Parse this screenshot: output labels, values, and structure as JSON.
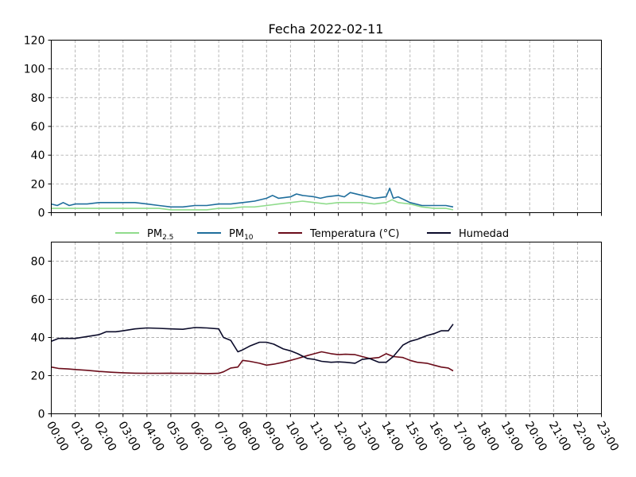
{
  "chart_data": [
    {
      "type": "line",
      "title": "Fecha 2022-02-11",
      "xlabel": "",
      "ylabel": "",
      "ylim": [
        0,
        120
      ],
      "yticks": [
        "0",
        "20",
        "40",
        "60",
        "80",
        "100",
        "120"
      ],
      "grid": true,
      "x_unit": "hours",
      "series": [
        {
          "name": "PM2.5",
          "color": "#90dc8c",
          "x": [
            0,
            0.5,
            1,
            1.5,
            2,
            2.5,
            3,
            3.5,
            4,
            4.5,
            5,
            5.5,
            6,
            6.5,
            7,
            7.5,
            8,
            8.5,
            9,
            9.5,
            10,
            10.5,
            11,
            11.5,
            12,
            12.5,
            13,
            13.5,
            14,
            14.25,
            14.5,
            15,
            15.5,
            16,
            16.5,
            16.8
          ],
          "y": [
            3,
            3,
            3,
            3,
            3,
            3,
            3,
            3,
            3,
            3,
            2,
            2,
            2,
            2,
            3,
            3,
            4,
            4,
            5,
            6,
            7,
            8,
            7,
            6,
            7,
            7,
            7,
            6,
            7,
            9,
            7,
            6,
            4,
            3,
            3,
            2
          ]
        },
        {
          "name": "PM10",
          "color": "#1f6e9c",
          "x": [
            0,
            0.25,
            0.5,
            0.75,
            1,
            1.5,
            2,
            2.5,
            3,
            3.5,
            4,
            4.5,
            5,
            5.5,
            6,
            6.5,
            7,
            7.5,
            8,
            8.5,
            9,
            9.25,
            9.5,
            10,
            10.25,
            10.5,
            11,
            11.25,
            11.5,
            12,
            12.25,
            12.5,
            13,
            13.5,
            14,
            14.15,
            14.3,
            14.5,
            15,
            15.5,
            16,
            16.5,
            16.8
          ],
          "y": [
            6,
            5,
            7,
            5,
            6,
            6,
            7,
            7,
            7,
            7,
            6,
            5,
            4,
            4,
            5,
            5,
            6,
            6,
            7,
            8,
            10,
            12,
            10,
            11,
            13,
            12,
            11,
            10,
            11,
            12,
            11,
            14,
            12,
            10,
            11,
            17,
            10,
            11,
            7,
            5,
            5,
            5,
            4
          ]
        }
      ]
    },
    {
      "type": "line",
      "title": "",
      "xlabel": "",
      "ylabel": "",
      "ylim": [
        0,
        90
      ],
      "yticks": [
        "0",
        "20",
        "40",
        "60",
        "80"
      ],
      "grid": true,
      "x_unit": "hours",
      "xticks": [
        "00:00",
        "01:00",
        "02:00",
        "03:00",
        "04:00",
        "05:00",
        "06:00",
        "07:00",
        "08:00",
        "09:00",
        "10:00",
        "11:00",
        "12:00",
        "13:00",
        "14:00",
        "15:00",
        "16:00",
        "17:00",
        "18:00",
        "19:00",
        "20:00",
        "21:00",
        "22:00",
        "23:00"
      ],
      "series": [
        {
          "name": "Temperatura (°C)",
          "color": "#6b0c1a",
          "x": [
            0,
            0.3,
            0.7,
            1,
            1.5,
            2,
            2.5,
            3,
            3.5,
            4,
            4.5,
            5,
            5.5,
            6,
            6.5,
            7,
            7.2,
            7.5,
            7.8,
            8,
            8.3,
            8.7,
            9,
            9.3,
            9.7,
            10,
            10.3,
            10.7,
            11,
            11.3,
            11.7,
            12,
            12.3,
            12.7,
            13,
            13.3,
            13.7,
            14,
            14.3,
            14.7,
            15,
            15.3,
            15.7,
            16,
            16.3,
            16.6,
            16.8
          ],
          "y": [
            24.5,
            23.8,
            23.5,
            23.2,
            22.8,
            22.2,
            21.8,
            21.5,
            21.3,
            21.2,
            21.2,
            21.3,
            21.2,
            21.2,
            21.1,
            21.2,
            22,
            24,
            24.5,
            28,
            27.5,
            26.5,
            25.5,
            26,
            27,
            28,
            29,
            30.5,
            31.5,
            32.5,
            31.5,
            31,
            31.2,
            31,
            30,
            29,
            29.5,
            31.5,
            30,
            29.5,
            28,
            27,
            26.5,
            25.5,
            24.5,
            24,
            22.5
          ]
        },
        {
          "name": "Humedad",
          "color": "#0b0b2a",
          "x": [
            0,
            0.3,
            0.7,
            1,
            1.5,
            2,
            2.3,
            2.7,
            3,
            3.5,
            4,
            4.5,
            5,
            5.5,
            6,
            6.5,
            7,
            7.2,
            7.5,
            7.8,
            8,
            8.3,
            8.7,
            9,
            9.3,
            9.7,
            10,
            10.3,
            10.7,
            11,
            11.3,
            11.7,
            12,
            12.3,
            12.7,
            13,
            13.3,
            13.7,
            14,
            14.3,
            14.7,
            15,
            15.3,
            15.7,
            16,
            16.3,
            16.6,
            16.8
          ],
          "y": [
            38,
            39.5,
            39.5,
            39.5,
            40.5,
            41.5,
            43,
            43,
            43.5,
            44.5,
            45,
            44.8,
            44.5,
            44.3,
            45.2,
            45,
            44.5,
            40,
            38.5,
            32.5,
            33.5,
            35.5,
            37.5,
            37.5,
            36.5,
            34,
            33,
            31.5,
            29,
            28.5,
            27.5,
            27,
            27.2,
            27,
            26.5,
            28.5,
            29,
            27,
            27,
            30,
            36,
            38,
            39,
            41,
            42,
            43.5,
            43.5,
            47
          ]
        }
      ]
    }
  ]
}
